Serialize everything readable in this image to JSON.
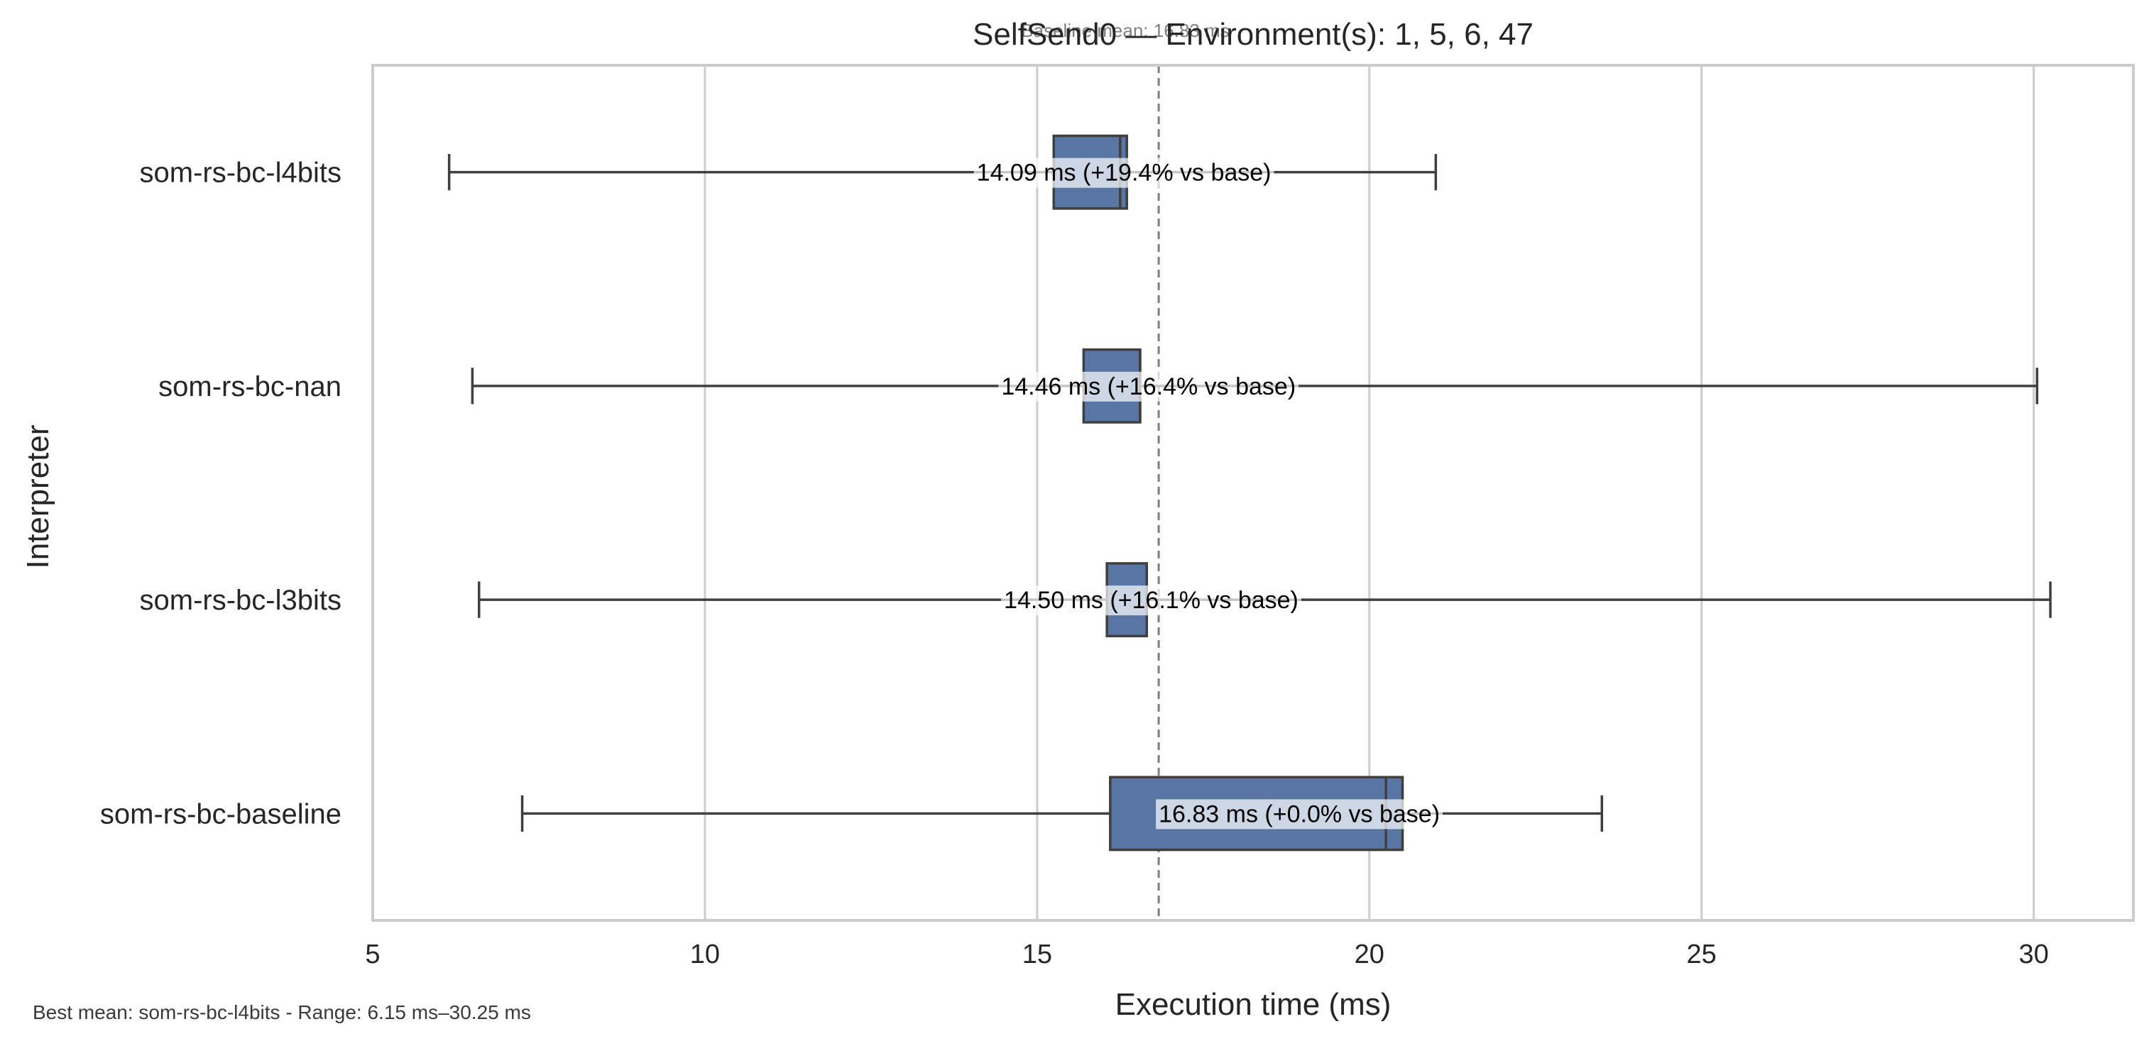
{
  "chart_data": {
    "type": "boxplot",
    "orientation": "horizontal",
    "title": "SelfSend0 — Environment(s): 1, 5, 6, 47",
    "subtitle": "Baseline mean: 16.83 ms",
    "xlabel": "Execution time (ms)",
    "ylabel": "Interpreter",
    "xlim": [
      5,
      31.5
    ],
    "xticks": [
      5,
      10,
      15,
      20,
      25,
      30
    ],
    "grid": "x",
    "reference_line": {
      "value": 16.83,
      "style": "dashed"
    },
    "box_color": "#5975a4",
    "series": [
      {
        "name": "som-rs-bc-l4bits",
        "whisker_low": 6.15,
        "q1": 15.25,
        "median": 16.25,
        "q3": 16.35,
        "whisker_high": 21.0,
        "mean": 14.09,
        "annotation": "14.09 ms  (+19.4% vs base)"
      },
      {
        "name": "som-rs-bc-nan",
        "whisker_low": 6.5,
        "q1": 15.7,
        "median": 16.55,
        "q3": 16.55,
        "whisker_high": 30.05,
        "mean": 14.46,
        "annotation": "14.46 ms  (+16.4% vs base)"
      },
      {
        "name": "som-rs-bc-l3bits",
        "whisker_low": 6.6,
        "q1": 16.05,
        "median": 16.65,
        "q3": 16.65,
        "whisker_high": 30.25,
        "mean": 14.5,
        "annotation": "14.50 ms  (+16.1% vs base)"
      },
      {
        "name": "som-rs-bc-baseline",
        "whisker_low": 7.25,
        "q1": 16.1,
        "median": 20.25,
        "q3": 20.5,
        "whisker_high": 23.5,
        "mean": 16.83,
        "annotation": "16.83 ms  (+0.0% vs base)"
      }
    ]
  },
  "footnote": "Best mean: som-rs-bc-l4bits - Range: 6.15 ms–30.25 ms"
}
